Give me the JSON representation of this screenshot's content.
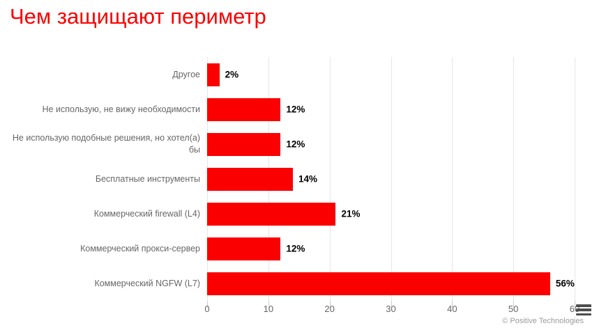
{
  "title": "Чем защищают периметр",
  "credit_label": "© Positive Technologies",
  "icons": {
    "context_menu_icon": "≡"
  },
  "colors": {
    "title": "#fa0000",
    "bar": "#fa0000",
    "category_label": "#666666",
    "tick_label": "#666666",
    "value_label": "#000000",
    "gridline": "#e6e6e6",
    "tick_mark": "#cccccc",
    "credit": "#9b9b9b",
    "menu_icon": "#4d4d4d"
  },
  "chart_data": {
    "type": "bar",
    "orientation": "horizontal",
    "title": "Чем защищают периметр",
    "categories": [
      "Другое",
      "Не использую, не вижу необходимости",
      "Не использую подобные решения, но хотел(а) бы",
      "Бесплатные инструменты",
      "Коммерческий firewall (L4)",
      "Коммерческий прокси-сервер",
      "Коммерческий NGFW (L7)"
    ],
    "values": [
      2,
      12,
      12,
      14,
      21,
      12,
      56
    ],
    "value_labels": [
      "2%",
      "12%",
      "12%",
      "14%",
      "21%",
      "12%",
      "56%"
    ],
    "xlabel": "",
    "ylabel": "",
    "xlim": [
      0,
      60
    ],
    "xticks": [
      0,
      10,
      20,
      30,
      40,
      50,
      60
    ],
    "grid": true,
    "legend": false,
    "bar_color": "#fa0000"
  }
}
